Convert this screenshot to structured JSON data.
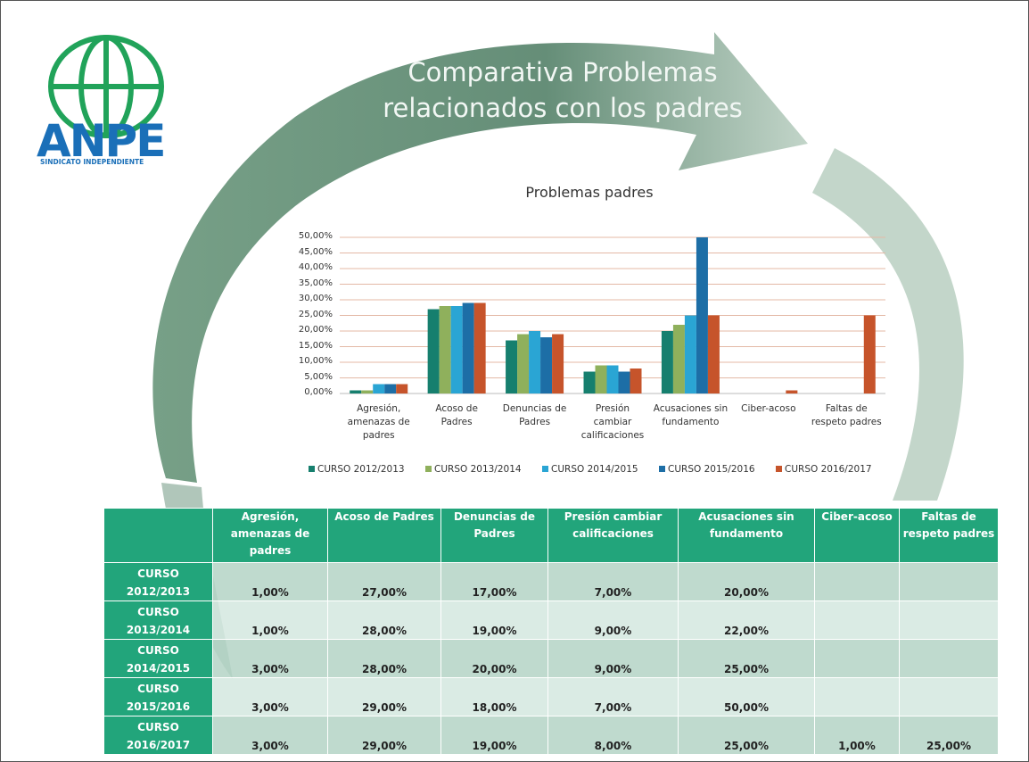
{
  "header": {
    "title": "Comparativa Problemas relacionados con los padres"
  },
  "logo": {
    "name": "ANPE",
    "subtitle": "SINDICATO INDEPENDIENTE"
  },
  "chart_data": {
    "type": "bar",
    "title": "Problemas padres",
    "categories": [
      "Agresión, amenazas de padres",
      "Acoso de Padres",
      "Denuncias de Padres",
      "Presión cambiar calificaciones",
      "Acusaciones sin fundamento",
      "Ciber-acoso",
      "Faltas de respeto padres"
    ],
    "series": [
      {
        "name": "CURSO 2012/2013",
        "color": "#167f6e",
        "values": [
          1,
          27,
          17,
          7,
          20,
          null,
          null
        ],
        "value_labels": [
          "1,00%",
          "27,00%",
          "17,00%",
          "7,00%",
          "20,00%",
          null,
          null
        ]
      },
      {
        "name": "CURSO 2013/2014",
        "color": "#8fb05c",
        "values": [
          1,
          28,
          19,
          9,
          22,
          null,
          null
        ],
        "value_labels": [
          "1,00%",
          "28,00%",
          "19,00%",
          "9,00%",
          "22,00%",
          null,
          null
        ]
      },
      {
        "name": "CURSO 2014/2015",
        "color": "#2aa5d4",
        "values": [
          3,
          28,
          20,
          9,
          25,
          null,
          null
        ],
        "value_labels": [
          "3,00%",
          "28,00%",
          "20,00%",
          "9,00%",
          "25,00%",
          null,
          null
        ]
      },
      {
        "name": "CURSO 2015/2016",
        "color": "#1d6ea6",
        "values": [
          3,
          29,
          18,
          7,
          50,
          null,
          null
        ],
        "value_labels": [
          "3,00%",
          "29,00%",
          "18,00%",
          "7,00%",
          "50,00%",
          null,
          null
        ]
      },
      {
        "name": "CURSO 2016/2017",
        "color": "#c6542b",
        "values": [
          3,
          29,
          19,
          8,
          25,
          1,
          25
        ],
        "value_labels": [
          "3,00%",
          "29,00%",
          "19,00%",
          "8,00%",
          "25,00%",
          "1,00%",
          "25,00%"
        ]
      }
    ],
    "ylim": [
      0,
      50
    ],
    "yticks": [
      {
        "value": 0,
        "label": "0,00%"
      },
      {
        "value": 5,
        "label": "5,00%"
      },
      {
        "value": 10,
        "label": "10,00%"
      },
      {
        "value": 15,
        "label": "15,00%"
      },
      {
        "value": 20,
        "label": "20,00%"
      },
      {
        "value": 25,
        "label": "25,00%"
      },
      {
        "value": 30,
        "label": "30,00%"
      },
      {
        "value": 35,
        "label": "35,00%"
      },
      {
        "value": 40,
        "label": "40,00%"
      },
      {
        "value": 45,
        "label": "45,00%"
      },
      {
        "value": 50,
        "label": "50,00%"
      }
    ],
    "grid": true,
    "legend": "bottom"
  }
}
